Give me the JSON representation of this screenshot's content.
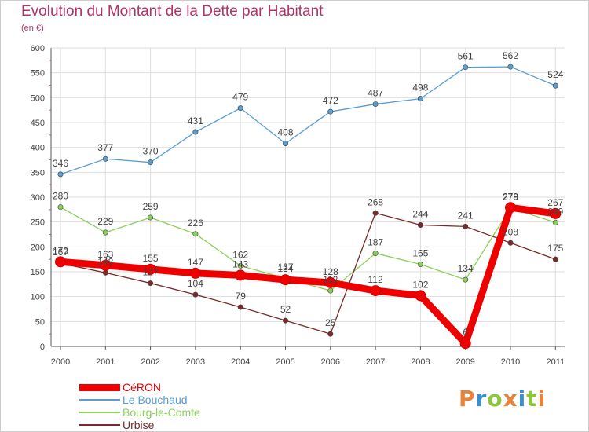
{
  "header": {
    "title": "Evolution du Montant de la Dette par Habitant",
    "subtitle": "(en €)"
  },
  "colors": {
    "title": "#b0336a",
    "grid": "#dddddd",
    "axis": "#555555"
  },
  "logo": {
    "letters": [
      "P",
      "r",
      "o",
      "x",
      "i",
      "t",
      "i"
    ],
    "colors": [
      "#e8833a",
      "#3a8fd0",
      "#8cc63f",
      "#e8833a",
      "#3a8fd0",
      "#8cc63f",
      "#e8833a"
    ]
  },
  "chart_data": {
    "type": "line",
    "title": "Evolution du Montant de la Dette par Habitant",
    "subtitle": "(en €)",
    "xlabel": "",
    "ylabel": "",
    "x": [
      "2000",
      "2001",
      "2002",
      "2003",
      "2004",
      "2005",
      "2006",
      "2007",
      "2008",
      "2009",
      "2010",
      "2011"
    ],
    "ylim": [
      0,
      600
    ],
    "yticks": [
      0,
      50,
      100,
      150,
      200,
      250,
      300,
      350,
      400,
      450,
      500,
      550,
      600
    ],
    "grid": true,
    "legend_position": "bottom-left",
    "series": [
      {
        "name": "CéRON",
        "color": "#ee0000",
        "values": [
          170,
          163,
          155,
          147,
          143,
          134,
          128,
          112,
          102,
          6,
          279,
          267
        ],
        "labels": [
          "170",
          "163",
          "155",
          "147",
          "143",
          "134",
          "128",
          "112",
          "102",
          "6",
          "279",
          "267"
        ]
      },
      {
        "name": "Le Bouchaud",
        "color": "#5a9ed1",
        "values": [
          346,
          377,
          370,
          431,
          479,
          408,
          472,
          487,
          498,
          561,
          562,
          524
        ],
        "labels": [
          "346",
          "377",
          "370",
          "431",
          "479",
          "408",
          "472",
          "487",
          "498",
          "561",
          "562",
          "524"
        ]
      },
      {
        "name": "Bourg-le-Comte",
        "color": "#8cd05a",
        "values": [
          280,
          229,
          259,
          226,
          162,
          137,
          112,
          187,
          165,
          134,
          278,
          249
        ],
        "labels": [
          "280",
          "229",
          "259",
          "226",
          "162",
          "137",
          "112",
          "187",
          "165",
          "134",
          "278",
          "249"
        ]
      },
      {
        "name": "Urbise",
        "color": "#7a2a2a",
        "values": [
          167,
          148,
          127,
          104,
          79,
          52,
          25,
          268,
          244,
          241,
          208,
          175
        ],
        "labels": [
          "167",
          "148",
          "127",
          "104",
          "79",
          "52",
          "25",
          "268",
          "244",
          "241",
          "208",
          "175"
        ]
      }
    ]
  }
}
